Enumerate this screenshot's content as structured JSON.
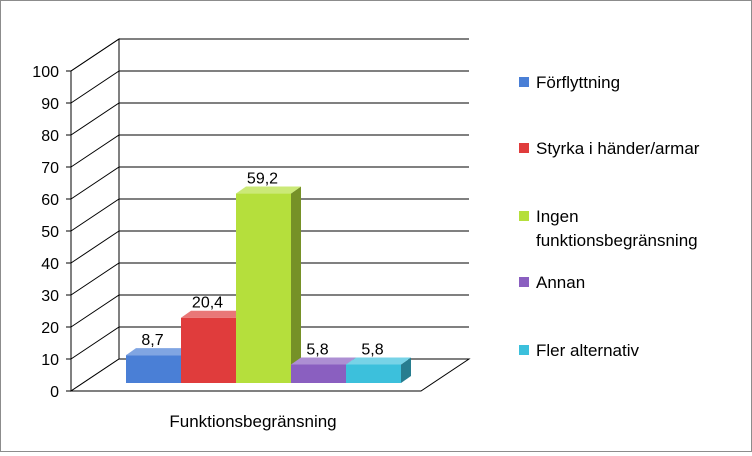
{
  "chart_data": {
    "type": "bar",
    "categories": [
      "Funktionsbegränsning"
    ],
    "series": [
      {
        "name": "Förflyttning",
        "values": [
          8.7
        ],
        "label": "8,7",
        "color": "#4a7fd6"
      },
      {
        "name": "Styrka i händer/armar",
        "values": [
          20.4
        ],
        "label": "20,4",
        "color": "#e03c3c"
      },
      {
        "name": "Ingen funktionsbegränsning",
        "values": [
          59.2
        ],
        "label": "59,2",
        "color": "#b5df3c"
      },
      {
        "name": "Annan",
        "values": [
          5.8
        ],
        "label": "5,8",
        "color": "#8a5fc0"
      },
      {
        "name": "Fler alternativ",
        "values": [
          5.8
        ],
        "label": "5,8",
        "color": "#3cc0dc"
      }
    ],
    "yticks": [
      "0",
      "10",
      "20",
      "30",
      "40",
      "50",
      "60",
      "70",
      "80",
      "90",
      "100"
    ],
    "ylim": [
      0,
      100
    ],
    "grid": true,
    "legend_position": "right",
    "three_d": true
  }
}
